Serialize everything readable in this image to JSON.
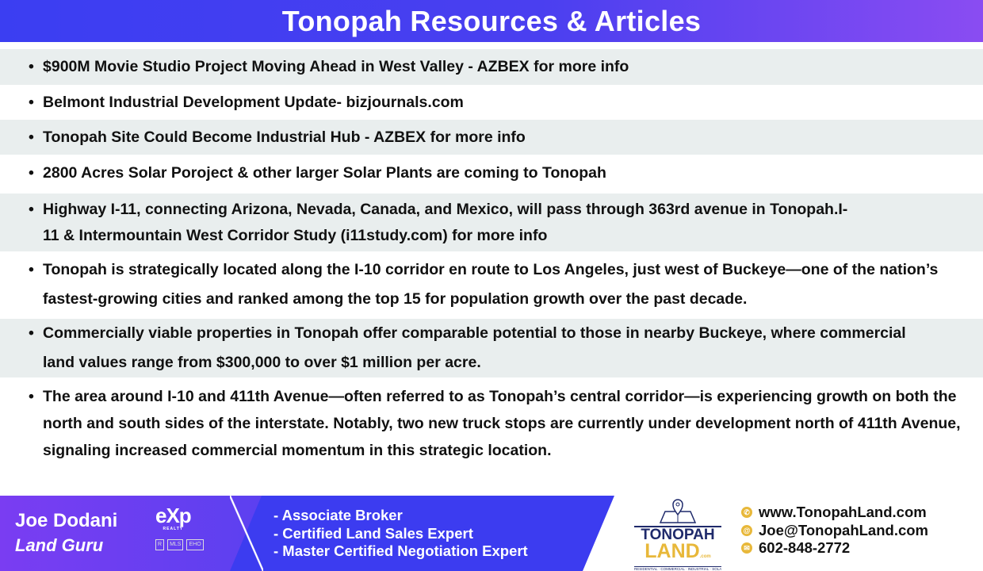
{
  "header": {
    "title": "Tonopah Resources & Articles"
  },
  "articles": [
    {
      "text": "$900M Movie Studio Project Moving Ahead in West Valley - AZBEX for more info"
    },
    {
      "text": "Belmont Industrial Development Update- bizjournals.com"
    },
    {
      "text": "Tonopah Site Could Become Industrial Hub - AZBEX for more info"
    },
    {
      "text": "2800 Acres Solar Poroject & other larger Solar Plants are coming to Tonopah"
    },
    {
      "text": "Highway I-11, connecting Arizona, Nevada, Canada, and Mexico, will pass through 363rd avenue in Tonopah.I-11 & Intermountain West Corridor Study (i11study.com) for more info"
    },
    {
      "text": "Tonopah is strategically located along the I-10 corridor en route to Los Angeles, just west of Buckeye—one of the nation’s fastest-growing cities and ranked among the top 15 for population growth over the past decade."
    },
    {
      "text": "Commercially viable properties in Tonopah offer comparable potential to those in nearby Buckeye, where commercial land values range from $300,000 to over $1 million per acre."
    },
    {
      "text": "The area around I-10 and 411th Avenue—often referred to as Tonopah’s central corridor—is experiencing growth on both the north and south sides of the interstate. Notably, two new truck stops are currently under development north of 411th Avenue, signaling increased commercial momentum in this strategic location."
    }
  ],
  "footer": {
    "name": "Joe Dodani",
    "title": "Land Guru",
    "brokerage_logo": "eXp",
    "brokerage_sub": "REALTY",
    "badges": [
      "R",
      "MLS",
      "EHO"
    ],
    "credentials": [
      "- Associate Broker",
      "- Certified Land Sales Expert",
      "- Master Certified Negotiation Expert"
    ],
    "logo": {
      "line1": "TONOPAH",
      "line2": "LAND",
      "suffix": ".com",
      "tagline": "RESIDENTIAL · COMMERCIAL · INDUSTRIAL · SOLAR · FARM"
    },
    "contacts": [
      {
        "icon": "phone-icon",
        "text": "www.TonopahLand.com"
      },
      {
        "icon": "at-icon",
        "text": "Joe@TonopahLand.com"
      },
      {
        "icon": "mail-icon",
        "text": "602-848-2772"
      }
    ]
  },
  "colors": {
    "header_start": "#3b3ef2",
    "header_end": "#8a4cf2",
    "row_alt": "#e9eeee",
    "accent": "#e8b83a",
    "logo_navy": "#1f2a6b"
  }
}
